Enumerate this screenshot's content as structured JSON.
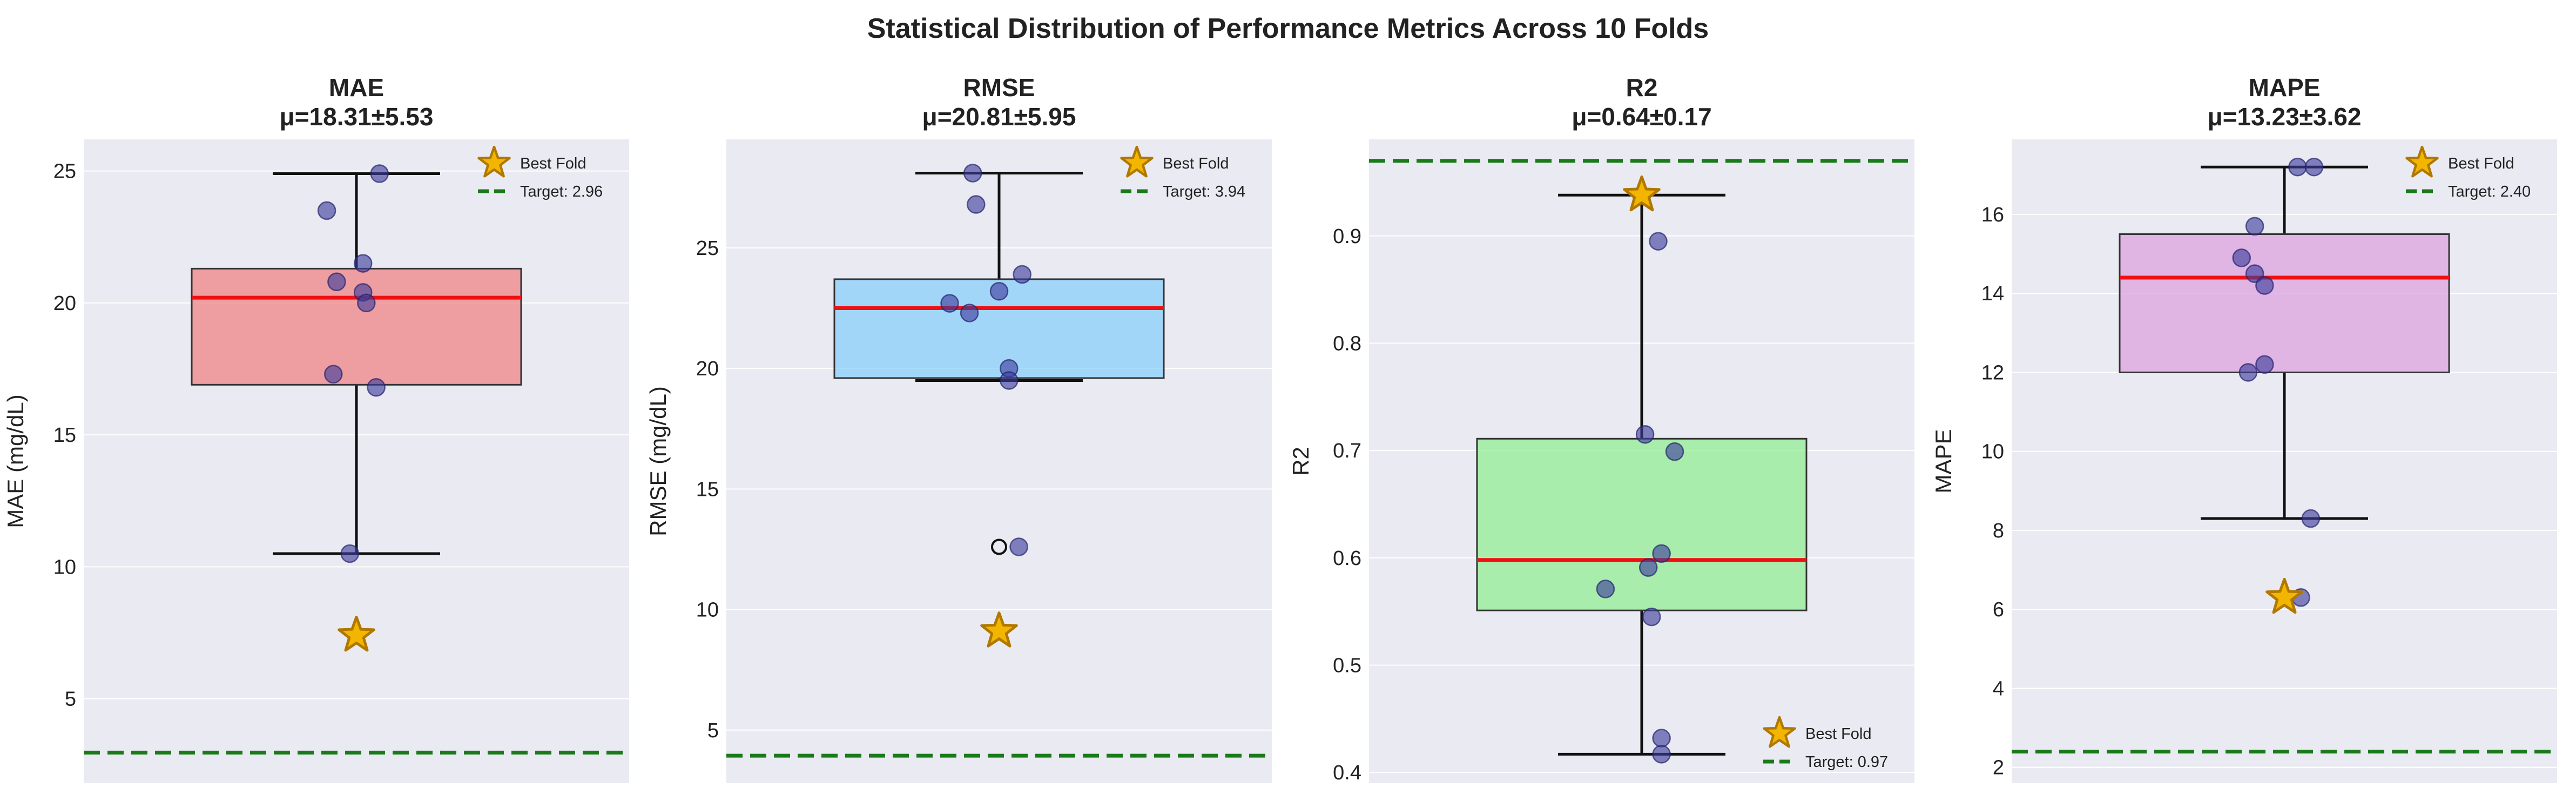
{
  "figure": {
    "title": "Statistical Distribution of Performance Metrics Across 10 Folds",
    "colors": {
      "panel_bg": "#eaeaf2",
      "grid": "#ffffff",
      "median": "#ee1111",
      "whisker": "#111111",
      "points": "#3b3b9c",
      "star_fill": "#f2b600",
      "star_edge": "#b07800",
      "target": "#1a7a1a"
    }
  },
  "chart_data": [
    {
      "type": "box",
      "title": "MAE",
      "subtitle": "μ=18.31±5.53",
      "ylabel": "MAE (mg/dL)",
      "ylim": [
        1.8,
        26.2
      ],
      "yticks": [
        5,
        10,
        15,
        20,
        25
      ],
      "box_color": "#f08080",
      "box": {
        "q1": 16.9,
        "median": 20.2,
        "q3": 21.3,
        "whisker_low": 10.5,
        "whisker_high": 24.9
      },
      "points": [
        {
          "x": 0.07,
          "y": 24.9
        },
        {
          "x": -0.09,
          "y": 23.5
        },
        {
          "x": 0.02,
          "y": 21.5
        },
        {
          "x": -0.06,
          "y": 20.8
        },
        {
          "x": 0.02,
          "y": 20.4
        },
        {
          "x": 0.03,
          "y": 20.0
        },
        {
          "x": -0.07,
          "y": 17.3
        },
        {
          "x": 0.06,
          "y": 16.8
        },
        {
          "x": -0.02,
          "y": 10.5
        }
      ],
      "outliers": [],
      "best_fold": {
        "x": 0.0,
        "y": 7.4
      },
      "target": 2.96,
      "legend": {
        "position": "upper-right",
        "best_label": "Best Fold",
        "target_label": "Target: 2.96"
      }
    },
    {
      "type": "box",
      "title": "RMSE",
      "subtitle": "μ=20.81±5.95",
      "ylabel": "RMSE (mg/dL)",
      "ylim": [
        2.8,
        29.5
      ],
      "yticks": [
        5,
        10,
        15,
        20,
        25
      ],
      "box_color": "#87cefa",
      "box": {
        "q1": 19.6,
        "median": 22.5,
        "q3": 23.7,
        "whisker_low": 19.5,
        "whisker_high": 28.1
      },
      "points": [
        {
          "x": -0.08,
          "y": 28.1
        },
        {
          "x": -0.07,
          "y": 26.8
        },
        {
          "x": 0.07,
          "y": 23.9
        },
        {
          "x": 0.0,
          "y": 23.2
        },
        {
          "x": -0.15,
          "y": 22.7
        },
        {
          "x": -0.09,
          "y": 22.3
        },
        {
          "x": 0.03,
          "y": 20.0
        },
        {
          "x": 0.03,
          "y": 19.5
        },
        {
          "x": 0.06,
          "y": 12.6
        }
      ],
      "outliers": [
        {
          "y": 12.6
        }
      ],
      "best_fold": {
        "x": 0.0,
        "y": 9.1
      },
      "target": 3.94,
      "legend": {
        "position": "upper-right",
        "best_label": "Best Fold",
        "target_label": "Target: 3.94"
      }
    },
    {
      "type": "box",
      "title": "R2",
      "subtitle": "μ=0.64±0.17",
      "ylabel": "R2",
      "ylim": [
        0.39,
        0.99
      ],
      "yticks": [
        0.4,
        0.5,
        0.6,
        0.7,
        0.8,
        0.9
      ],
      "box_color": "#90ee90",
      "box": {
        "q1": 0.551,
        "median": 0.598,
        "q3": 0.711,
        "whisker_low": 0.417,
        "whisker_high": 0.938
      },
      "points": [
        {
          "x": 0.05,
          "y": 0.895
        },
        {
          "x": 0.01,
          "y": 0.715
        },
        {
          "x": 0.1,
          "y": 0.699
        },
        {
          "x": 0.06,
          "y": 0.604
        },
        {
          "x": 0.02,
          "y": 0.591
        },
        {
          "x": -0.11,
          "y": 0.571
        },
        {
          "x": 0.03,
          "y": 0.545
        },
        {
          "x": 0.06,
          "y": 0.432
        },
        {
          "x": 0.06,
          "y": 0.417
        }
      ],
      "outliers": [],
      "best_fold": {
        "x": 0.0,
        "y": 0.938
      },
      "target": 0.97,
      "legend": {
        "position": "lower-right",
        "best_label": "Best Fold",
        "target_label": "Target: 0.97"
      }
    },
    {
      "type": "box",
      "title": "MAPE",
      "subtitle": "μ=13.23±3.62",
      "ylabel": "MAPE",
      "ylim": [
        1.6,
        17.9
      ],
      "yticks": [
        2,
        4,
        6,
        8,
        10,
        12,
        14,
        16
      ],
      "box_color": "#dda0dd",
      "box": {
        "q1": 12.0,
        "median": 14.4,
        "q3": 15.5,
        "whisker_low": 8.3,
        "whisker_high": 17.2
      },
      "points": [
        {
          "x": 0.04,
          "y": 17.2
        },
        {
          "x": 0.09,
          "y": 17.2
        },
        {
          "x": -0.09,
          "y": 15.7
        },
        {
          "x": -0.13,
          "y": 14.9
        },
        {
          "x": -0.09,
          "y": 14.5
        },
        {
          "x": -0.06,
          "y": 14.2
        },
        {
          "x": -0.06,
          "y": 12.2
        },
        {
          "x": -0.11,
          "y": 12.0
        },
        {
          "x": 0.08,
          "y": 8.3
        },
        {
          "x": 0.05,
          "y": 6.3
        }
      ],
      "outliers": [],
      "best_fold": {
        "x": 0.0,
        "y": 6.3
      },
      "target": 2.4,
      "legend": {
        "position": "upper-right",
        "best_label": "Best Fold",
        "target_label": "Target: 2.40"
      }
    }
  ]
}
